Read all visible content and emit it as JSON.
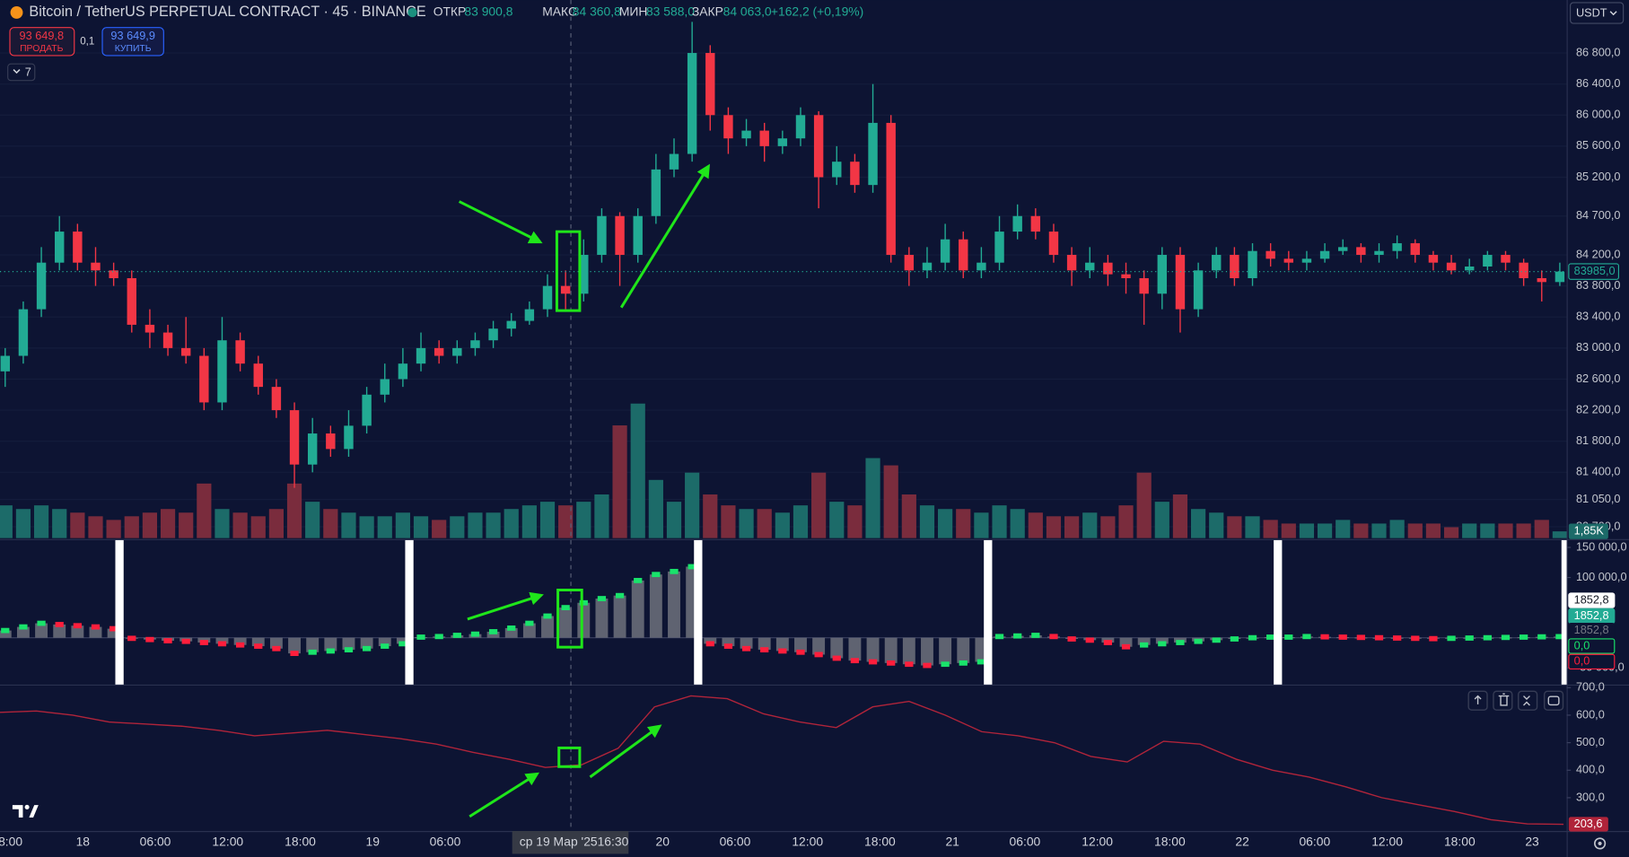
{
  "header": {
    "symbol": "Bitcoin / TetherUS PERPETUAL CONTRACT · 45 · BINANCE",
    "ohlc": [
      {
        "label": "ОТКР",
        "value": "83 900,8"
      },
      {
        "label": "МАКС",
        "value": "84 360,8"
      },
      {
        "label": "МИН",
        "value": "83 588,0"
      },
      {
        "label": "ЗАКР",
        "value": "84 063,0"
      }
    ],
    "change": "+162,2 (+0,19%)"
  },
  "trade": {
    "sell_price": "93 649,8",
    "sell_label": "ПРОДАТЬ",
    "spread": "0,1",
    "buy_price": "93 649,9",
    "buy_label": "КУПИТЬ"
  },
  "indicators_count": "7",
  "currency": "USDT",
  "price_pane": {
    "ylim": [
      80553,
      87482
    ],
    "yticks": [
      {
        "value": 86800,
        "label": "86 800,0"
      },
      {
        "value": 86400,
        "label": "86 400,0"
      },
      {
        "value": 86000,
        "label": "86 000,0"
      },
      {
        "value": 85600,
        "label": "85 600,0"
      },
      {
        "value": 85200,
        "label": "85 200,0"
      },
      {
        "value": 84700,
        "label": "84 700,0"
      },
      {
        "value": 84200,
        "label": "84 200,0"
      },
      {
        "value": 83800,
        "label": "83 800,0"
      },
      {
        "value": 83400,
        "label": "83 400,0"
      },
      {
        "value": 83000,
        "label": "83 000,0"
      },
      {
        "value": 82600,
        "label": "82 600,0"
      },
      {
        "value": 82200,
        "label": "82 200,0"
      },
      {
        "value": 81800,
        "label": "81 800,0"
      },
      {
        "value": 81400,
        "label": "81 400,0"
      },
      {
        "value": 81050,
        "label": "81 050,0"
      },
      {
        "value": 80700,
        "label": "80 700,0"
      }
    ],
    "up_color": "#22ab94",
    "down_color": "#f23645",
    "candles": [
      [
        82700,
        83000,
        82500,
        82900
      ],
      [
        82900,
        83600,
        82800,
        83500
      ],
      [
        83500,
        84300,
        83400,
        84100
      ],
      [
        84100,
        84700,
        84000,
        84500
      ],
      [
        84500,
        84600,
        84000,
        84100
      ],
      [
        84100,
        84300,
        83800,
        84000
      ],
      [
        84000,
        84100,
        83800,
        83900
      ],
      [
        83900,
        84000,
        83200,
        83300
      ],
      [
        83300,
        83500,
        83000,
        83200
      ],
      [
        83200,
        83300,
        82900,
        83000
      ],
      [
        83000,
        83400,
        82800,
        82900
      ],
      [
        82900,
        83000,
        82200,
        82300
      ],
      [
        82300,
        83400,
        82200,
        83100
      ],
      [
        83100,
        83200,
        82700,
        82800
      ],
      [
        82800,
        82900,
        82400,
        82500
      ],
      [
        82500,
        82600,
        82100,
        82200
      ],
      [
        82200,
        82300,
        81200,
        81500
      ],
      [
        81500,
        82100,
        81400,
        81900
      ],
      [
        81900,
        82000,
        81600,
        81700
      ],
      [
        81700,
        82200,
        81600,
        82000
      ],
      [
        82000,
        82500,
        81900,
        82400
      ],
      [
        82400,
        82800,
        82300,
        82600
      ],
      [
        82600,
        83000,
        82500,
        82800
      ],
      [
        82800,
        83200,
        82700,
        83000
      ],
      [
        83000,
        83100,
        82800,
        82900
      ],
      [
        82900,
        83100,
        82800,
        83000
      ],
      [
        83000,
        83200,
        82900,
        83100
      ],
      [
        83100,
        83350,
        83000,
        83250
      ],
      [
        83250,
        83450,
        83150,
        83350
      ],
      [
        83350,
        83600,
        83300,
        83500
      ],
      [
        83500,
        83950,
        83400,
        83800
      ],
      [
        83800,
        84000,
        83500,
        83700
      ],
      [
        83700,
        84400,
        83600,
        84200
      ],
      [
        84200,
        84800,
        84100,
        84700
      ],
      [
        84700,
        84750,
        83800,
        84200
      ],
      [
        84200,
        84800,
        84100,
        84700
      ],
      [
        84700,
        85500,
        84600,
        85300
      ],
      [
        85300,
        85700,
        85200,
        85500
      ],
      [
        85500,
        87200,
        85400,
        86800
      ],
      [
        86800,
        86900,
        85800,
        86000
      ],
      [
        86000,
        86100,
        85500,
        85700
      ],
      [
        85700,
        85950,
        85600,
        85800
      ],
      [
        85800,
        85900,
        85400,
        85600
      ],
      [
        85600,
        85800,
        85500,
        85700
      ],
      [
        85700,
        86100,
        85600,
        86000
      ],
      [
        86000,
        86050,
        84800,
        85200
      ],
      [
        85200,
        85600,
        85100,
        85400
      ],
      [
        85400,
        85500,
        85000,
        85100
      ],
      [
        85100,
        86400,
        85000,
        85900
      ],
      [
        85900,
        86000,
        84100,
        84200
      ],
      [
        84200,
        84300,
        83800,
        84000
      ],
      [
        84000,
        84300,
        83900,
        84100
      ],
      [
        84100,
        84600,
        84000,
        84400
      ],
      [
        84400,
        84500,
        83900,
        84000
      ],
      [
        84000,
        84300,
        83900,
        84100
      ],
      [
        84100,
        84700,
        84000,
        84500
      ],
      [
        84500,
        84850,
        84400,
        84700
      ],
      [
        84700,
        84800,
        84400,
        84500
      ],
      [
        84500,
        84600,
        84100,
        84200
      ],
      [
        84200,
        84300,
        83800,
        84000
      ],
      [
        84000,
        84300,
        83900,
        84100
      ],
      [
        84100,
        84200,
        83800,
        83950
      ],
      [
        83950,
        84100,
        83700,
        83900
      ],
      [
        83900,
        84000,
        83300,
        83700
      ],
      [
        83700,
        84300,
        83500,
        84200
      ],
      [
        84200,
        84300,
        83200,
        83500
      ],
      [
        83500,
        84100,
        83400,
        84000
      ],
      [
        84000,
        84300,
        83900,
        84200
      ],
      [
        84200,
        84300,
        83800,
        83900
      ],
      [
        83900,
        84350,
        83800,
        84250
      ],
      [
        84250,
        84350,
        84050,
        84150
      ],
      [
        84150,
        84250,
        84000,
        84100
      ],
      [
        84100,
        84250,
        84000,
        84150
      ],
      [
        84150,
        84350,
        84100,
        84250
      ],
      [
        84250,
        84400,
        84200,
        84300
      ],
      [
        84300,
        84350,
        84100,
        84200
      ],
      [
        84200,
        84350,
        84100,
        84250
      ],
      [
        84250,
        84450,
        84150,
        84350
      ],
      [
        84350,
        84400,
        84100,
        84200
      ],
      [
        84200,
        84250,
        84000,
        84100
      ],
      [
        84100,
        84200,
        83950,
        84000
      ],
      [
        84000,
        84150,
        83950,
        84050
      ],
      [
        84050,
        84250,
        84000,
        84200
      ],
      [
        84200,
        84250,
        84000,
        84100
      ],
      [
        84100,
        84150,
        83800,
        83900
      ],
      [
        83900,
        84000,
        83600,
        83850
      ],
      [
        83850,
        84100,
        83800,
        83985
      ]
    ],
    "last_price": {
      "value": 83985,
      "label": "83985,0"
    }
  },
  "volume": {
    "up_color": "#1c6b69",
    "down_color": "#7a2c3d",
    "values": [
      9,
      8,
      9,
      8,
      7,
      6,
      5,
      6,
      7,
      8,
      7,
      15,
      8,
      7,
      6,
      8,
      15,
      10,
      8,
      7,
      6,
      6,
      7,
      6,
      5,
      6,
      7,
      7,
      8,
      9,
      10,
      9,
      10,
      12,
      31,
      37,
      16,
      10,
      18,
      12,
      9,
      8,
      8,
      7,
      9,
      18,
      10,
      9,
      22,
      20,
      12,
      9,
      8,
      8,
      7,
      9,
      8,
      7,
      6,
      6,
      7,
      6,
      9,
      18,
      10,
      12,
      8,
      7,
      6,
      6,
      5,
      4,
      4,
      4,
      5,
      4,
      4,
      5,
      4,
      4,
      3,
      4,
      4,
      4,
      4,
      5,
      1.85
    ],
    "last_label": {
      "value": 1.85,
      "label": "1,85K"
    }
  },
  "delta_pane": {
    "ylim": [
      -76000,
      162000
    ],
    "yticks": [
      {
        "value": 150000,
        "label": "150 000,0"
      },
      {
        "value": 100000,
        "label": "100 000,0"
      },
      {
        "value": -50000,
        "label": "-50 000,0"
      }
    ],
    "bar_color": "#6e717c",
    "rise_color": "#19e36b",
    "fall_color": "#ff1e3c",
    "values": [
      12000,
      18000,
      24000,
      22000,
      20000,
      18000,
      15000,
      -1000,
      -3000,
      -5000,
      -6000,
      -8000,
      -10000,
      -12000,
      -14000,
      -18000,
      -26000,
      -24000,
      -22000,
      -20000,
      -18000,
      -14000,
      -10000,
      1000,
      2000,
      4000,
      6000,
      10000,
      16000,
      24000,
      36000,
      50000,
      58000,
      65000,
      70000,
      95000,
      105000,
      110000,
      118000,
      -10000,
      -14000,
      -18000,
      -20000,
      -22000,
      -24000,
      -28000,
      -34000,
      -38000,
      -40000,
      -42000,
      -44000,
      -46000,
      -44000,
      -42000,
      -40000,
      2000,
      3000,
      4000,
      2000,
      -2000,
      -4000,
      -8000,
      -15000,
      -12000,
      -10000,
      -8000,
      -6000,
      -4000,
      -2000,
      0,
      1000,
      1000,
      2000,
      1500,
      1000,
      500,
      0,
      -500,
      -1000,
      -1500,
      -1000,
      -500,
      0,
      500,
      1000,
      1500,
      1852.8
    ],
    "badges": [
      "1852,8",
      "1852,8",
      "1852,8",
      "0,0",
      "0,0"
    ]
  },
  "osc_pane": {
    "ylim": [
      179,
      707.5
    ],
    "yticks": [
      {
        "value": 700,
        "label": "700,0"
      },
      {
        "value": 600,
        "label": "600,0"
      },
      {
        "value": 500,
        "label": "500,0"
      },
      {
        "value": 400,
        "label": "400,0"
      },
      {
        "value": 300,
        "label": "300,0"
      }
    ],
    "color": "#b0243a",
    "values": [
      610,
      615,
      600,
      575,
      568,
      560,
      545,
      525,
      535,
      545,
      530,
      515,
      495,
      465,
      440,
      410,
      420,
      480,
      630,
      670,
      660,
      605,
      575,
      555,
      630,
      650,
      600,
      540,
      525,
      500,
      450,
      430,
      505,
      495,
      440,
      400,
      375,
      340,
      300,
      275,
      250,
      220,
      205,
      203.6
    ],
    "last_label": {
      "value": 203.6,
      "label": "203,6"
    }
  },
  "time_axis": {
    "labels": [
      "8:00",
      "18",
      "06:00",
      "12:00",
      "18:00",
      "19",
      "06:00",
      null,
      null,
      "20",
      "06:00",
      "12:00",
      "18:00",
      "21",
      "06:00",
      "12:00",
      "18:00",
      "22",
      "06:00",
      "12:00",
      "18:00",
      "23"
    ],
    "crosshair": {
      "date": "ср 19 Мар '25",
      "time": "16:30"
    }
  }
}
